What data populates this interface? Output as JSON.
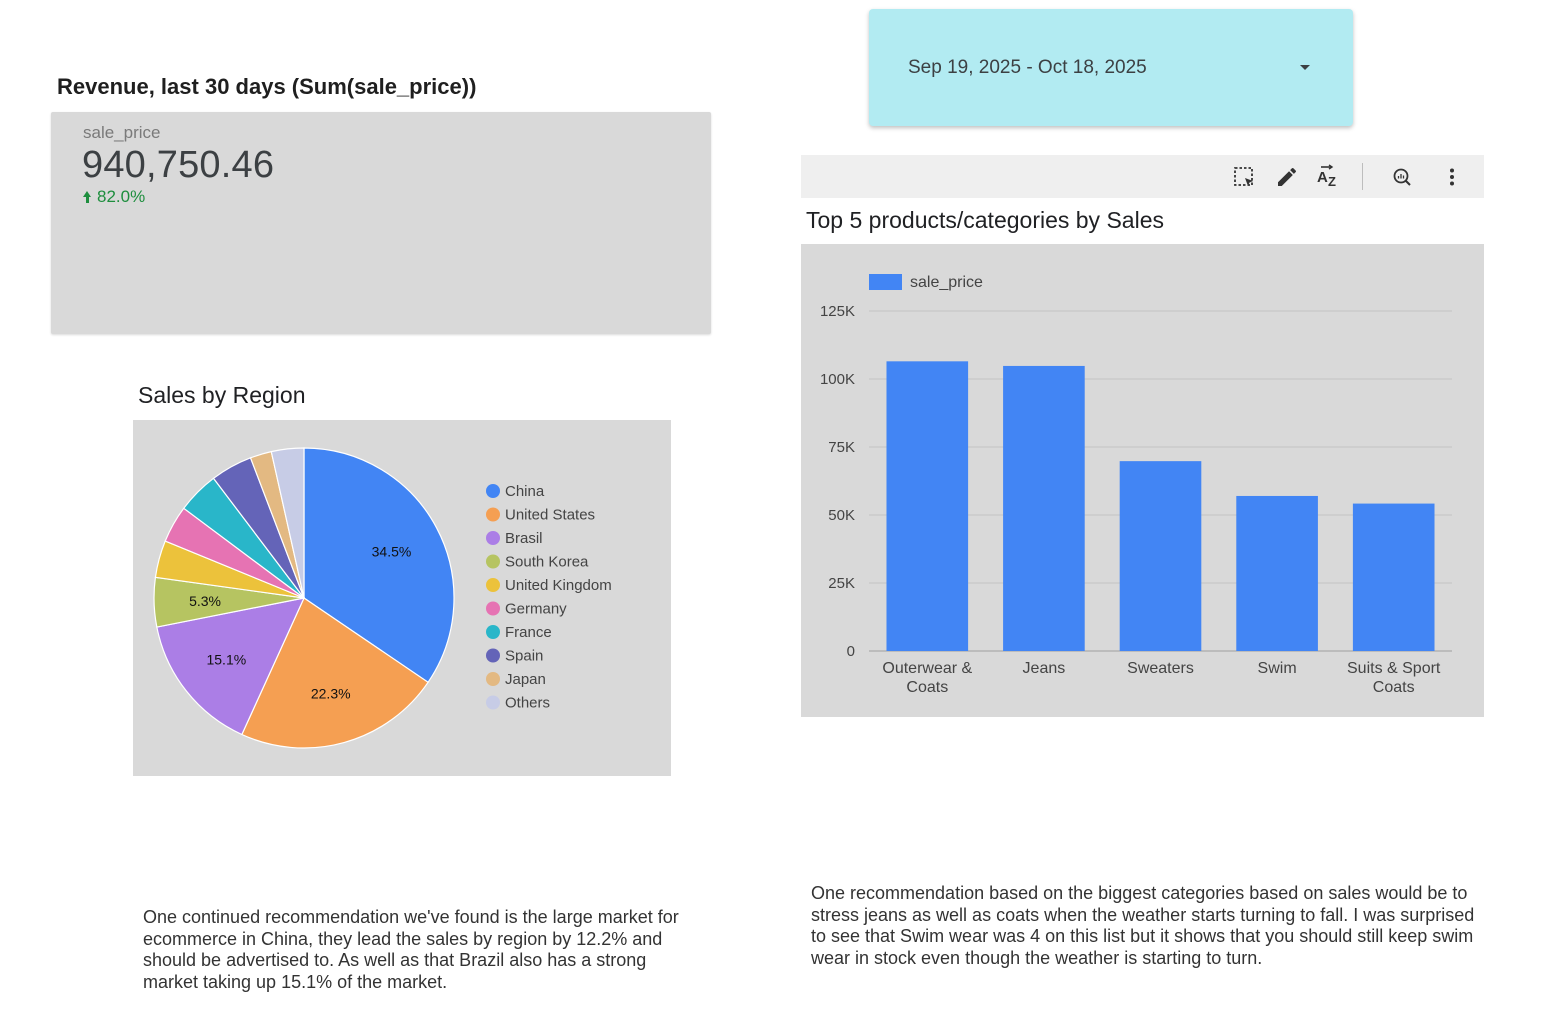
{
  "scorecard": {
    "title": "Revenue, last 30 days (Sum(sale_price))",
    "label": "sale_price",
    "value": "940,750.46",
    "delta": "82.0%",
    "delta_color": "#1e8e3e"
  },
  "date_range": {
    "label": "Sep 19, 2025 - Oct 18, 2025",
    "background": "#b2ebf2"
  },
  "toolbar": {
    "icons": [
      "select-region-icon",
      "edit-pencil-icon",
      "sort-az-icon",
      "explore-zoom-icon",
      "more-vert-icon"
    ]
  },
  "charts": {
    "bar_title": "Top 5 products/categories by Sales",
    "pie_title": "Sales by Region"
  },
  "chart_data": [
    {
      "type": "bar",
      "title": "Top 5 products/categories by Sales",
      "categories": [
        "Outerwear & Coats",
        "Jeans",
        "Sweaters",
        "Swim",
        "Suits & Sport Coats"
      ],
      "category_lines": [
        [
          "Outerwear &",
          "Coats"
        ],
        [
          "Jeans"
        ],
        [
          "Sweaters"
        ],
        [
          "Swim"
        ],
        [
          "Suits & Sport",
          "Coats"
        ]
      ],
      "series": [
        {
          "name": "sale_price",
          "values": [
            106500,
            104800,
            69800,
            57000,
            54200
          ],
          "color": "#4285f4"
        }
      ],
      "ylim": [
        0,
        125000
      ],
      "y_ticks": [
        0,
        25000,
        50000,
        75000,
        100000,
        125000
      ],
      "y_tick_labels": [
        "0",
        "25K",
        "50K",
        "75K",
        "100K",
        "125K"
      ],
      "grid": true,
      "legend": "top-left"
    },
    {
      "type": "pie",
      "title": "Sales by Region",
      "labels": [
        "China",
        "United States",
        "Brasil",
        "South Korea",
        "United Kingdom",
        "Germany",
        "France",
        "Spain",
        "Japan",
        "Others"
      ],
      "values": [
        34.5,
        22.3,
        15.1,
        5.3,
        4.0,
        4.0,
        4.5,
        4.5,
        2.3,
        3.5
      ],
      "data_labels": [
        "34.5%",
        "22.3%",
        "15.1%",
        "5.3%",
        "",
        "",
        "",
        "",
        "",
        ""
      ],
      "colors": [
        "#4285f4",
        "#f59f52",
        "#ab7ee6",
        "#b6c461",
        "#ecc23b",
        "#e673b3",
        "#29b6c9",
        "#6464b8",
        "#e3b982",
        "#c7cce6"
      ],
      "legend": "right"
    }
  ],
  "notes": {
    "left": "One continued recommendation we've found is the large market for ecommerce in China, they lead the sales by region by 12.2% and should be advertised to. As well as that Brazil also has a strong market taking up 15.1% of the market.",
    "right": "One recommendation based on the biggest categories based on sales would be to stress jeans as well as coats when the weather starts turning to fall. I was surprised to see that Swim wear was 4 on this list but it shows that you should still keep swim wear in stock even though the weather is starting to turn."
  }
}
